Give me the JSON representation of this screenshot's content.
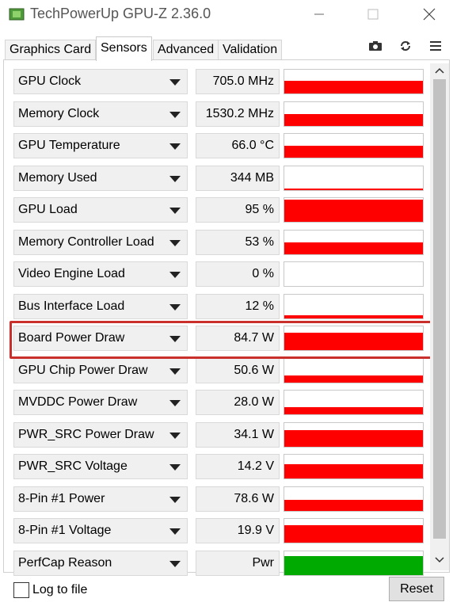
{
  "window": {
    "title": "TechPowerUp GPU-Z 2.36.0",
    "app_icon": "gpu-chip-icon"
  },
  "tabs": [
    {
      "label": "Graphics Card",
      "active": false
    },
    {
      "label": "Sensors",
      "active": true
    },
    {
      "label": "Advanced",
      "active": false
    },
    {
      "label": "Validation",
      "active": false
    }
  ],
  "toolbar_icons": [
    "camera-icon",
    "refresh-icon",
    "menu-icon"
  ],
  "colors": {
    "graph_fill": "#ff0000",
    "perfcap_fill": "#00aa00"
  },
  "sensors": [
    {
      "label": "GPU Clock",
      "value": "705.0 MHz",
      "level": 0.55
    },
    {
      "label": "Memory Clock",
      "value": "1530.2 MHz",
      "level": 0.5
    },
    {
      "label": "GPU Temperature",
      "value": "66.0 °C",
      "level": 0.5
    },
    {
      "label": "Memory Used",
      "value": "344 MB",
      "level": 0.05
    },
    {
      "label": "GPU Load",
      "value": "95 %",
      "level": 0.95
    },
    {
      "label": "Memory Controller Load",
      "value": "53 %",
      "level": 0.5
    },
    {
      "label": "Video Engine Load",
      "value": "0 %",
      "level": 0
    },
    {
      "label": "Bus Interface Load",
      "value": "12 %",
      "level": 0.12
    },
    {
      "label": "Board Power Draw",
      "value": "84.7 W",
      "level": 0.75
    },
    {
      "label": "GPU Chip Power Draw",
      "value": "50.6 W",
      "level": 0.3
    },
    {
      "label": "MVDDC Power Draw",
      "value": "28.0 W",
      "level": 0.3
    },
    {
      "label": "PWR_SRC Power Draw",
      "value": "34.1 W",
      "level": 0.7
    },
    {
      "label": "PWR_SRC Voltage",
      "value": "14.2 V",
      "level": 0.6
    },
    {
      "label": "8-Pin #1 Power",
      "value": "78.6 W",
      "level": 0.45
    },
    {
      "label": "8-Pin #1 Voltage",
      "value": "19.9 V",
      "level": 0.75
    },
    {
      "label": "PerfCap Reason",
      "value": "Pwr",
      "level": 0.8,
      "color": "green"
    }
  ],
  "highlighted_row": "Board Power Draw",
  "footer": {
    "log_checkbox_label": "Log to file",
    "log_checked": false,
    "reset_label": "Reset"
  }
}
